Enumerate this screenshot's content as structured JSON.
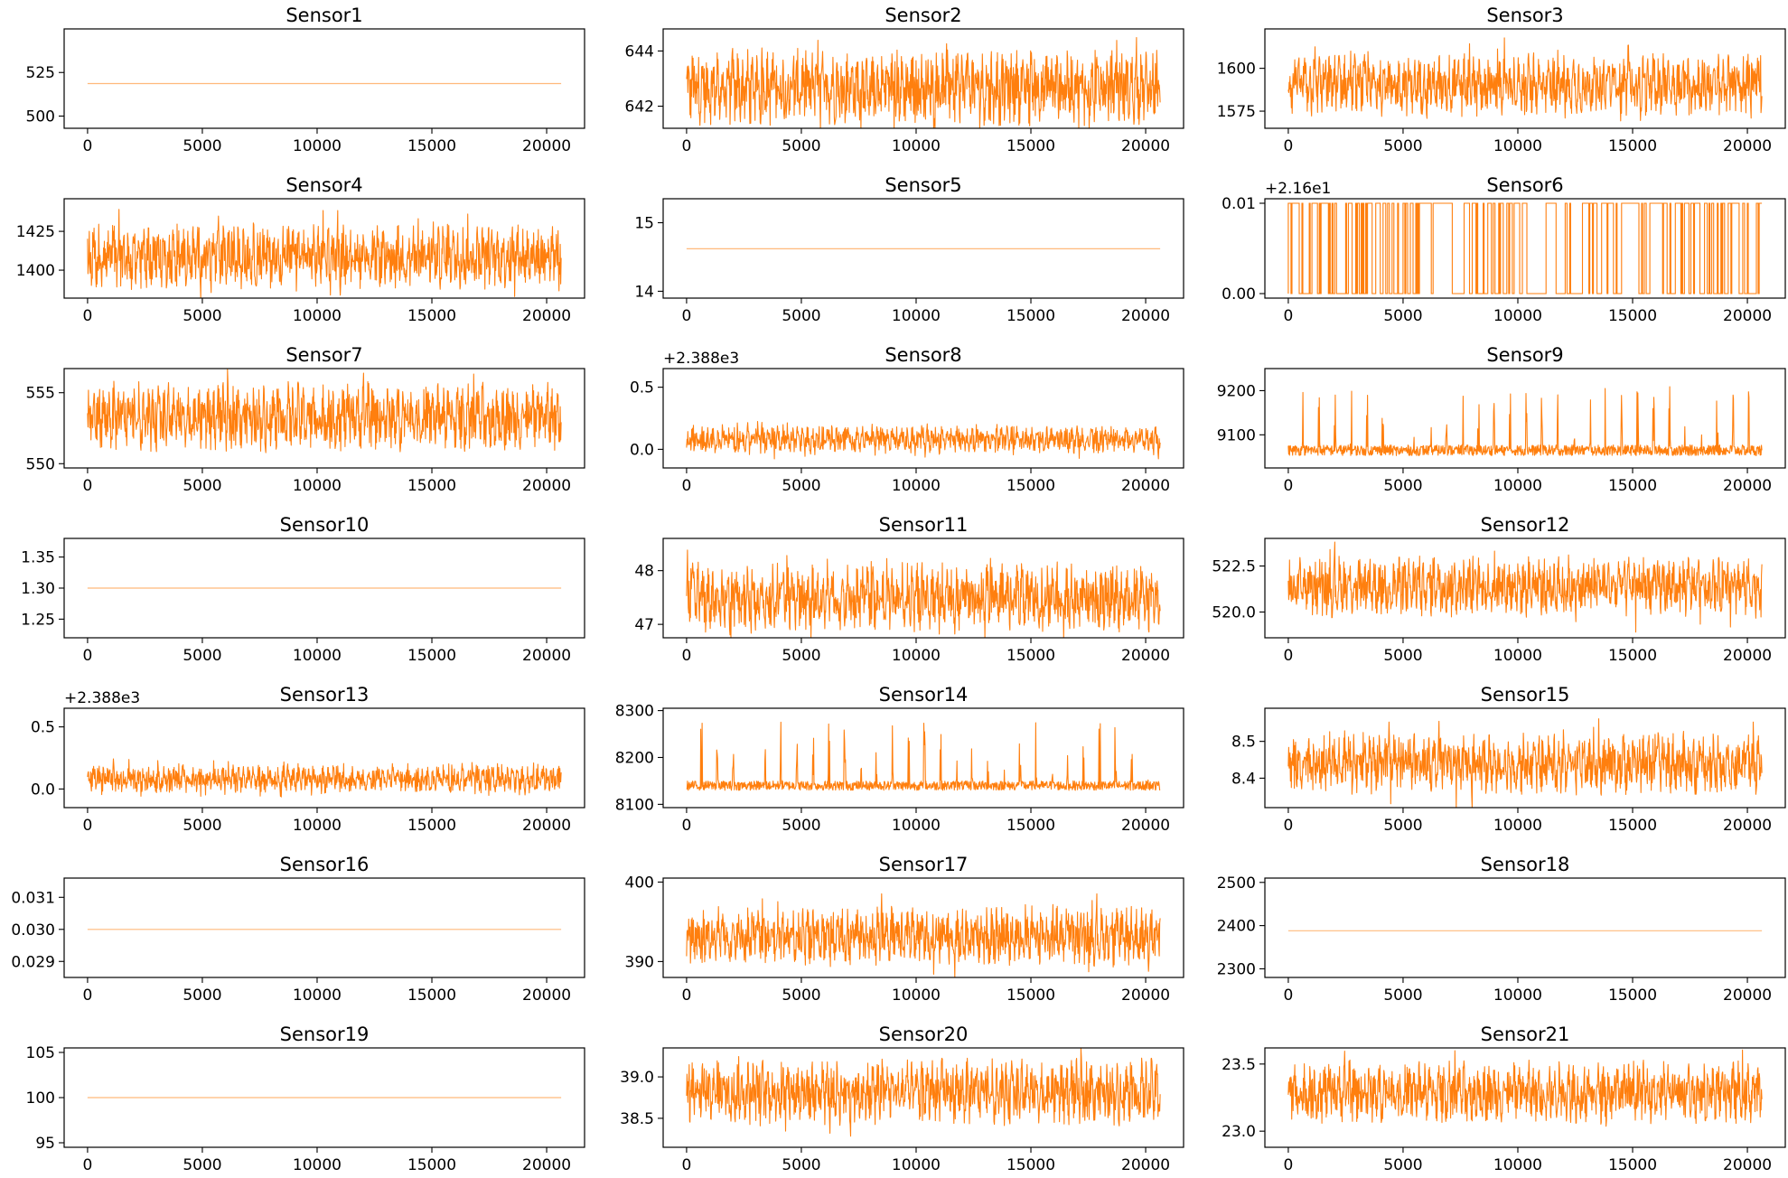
{
  "figure": {
    "x_ticks": [
      "0",
      "5000",
      "10000",
      "15000",
      "20000"
    ],
    "series_color": "#ff7f0e"
  },
  "chart_data": [
    {
      "type": "line",
      "title": "Sensor1",
      "x_range": [
        0,
        20631
      ],
      "ylim": [
        493,
        550
      ],
      "y_ticks": [
        {
          "value": 500,
          "label": "500"
        },
        {
          "value": 525,
          "label": "525"
        }
      ],
      "offset_text": "",
      "signal": {
        "kind": "flat",
        "level": 518.67
      }
    },
    {
      "type": "line",
      "title": "Sensor2",
      "x_range": [
        0,
        20631
      ],
      "ylim": [
        641.2,
        644.8
      ],
      "y_ticks": [
        {
          "value": 642,
          "label": "642"
        },
        {
          "value": 644,
          "label": "644"
        }
      ],
      "offset_text": "",
      "signal": {
        "kind": "noise",
        "mean": 642.68,
        "amplitude": 1.3,
        "spikes": 0.15
      }
    },
    {
      "type": "line",
      "title": "Sensor3",
      "x_range": [
        0,
        20631
      ],
      "ylim": [
        1565,
        1623
      ],
      "y_ticks": [
        {
          "value": 1575,
          "label": "1575"
        },
        {
          "value": 1600,
          "label": "1600"
        }
      ],
      "offset_text": "",
      "signal": {
        "kind": "noise",
        "mean": 1590.5,
        "amplitude": 17,
        "spikes": 0.15
      }
    },
    {
      "type": "line",
      "title": "Sensor4",
      "x_range": [
        0,
        20631
      ],
      "ylim": [
        1382,
        1446
      ],
      "y_ticks": [
        {
          "value": 1400,
          "label": "1400"
        },
        {
          "value": 1425,
          "label": "1425"
        }
      ],
      "offset_text": "",
      "signal": {
        "kind": "noise",
        "mean": 1408.9,
        "amplitude": 20,
        "spikes": 0.1
      }
    },
    {
      "type": "line",
      "title": "Sensor5",
      "x_range": [
        0,
        20631
      ],
      "ylim": [
        13.9,
        15.35
      ],
      "y_ticks": [
        {
          "value": 14,
          "label": "14"
        },
        {
          "value": 15,
          "label": "15"
        }
      ],
      "offset_text": "",
      "signal": {
        "kind": "flat",
        "level": 14.62
      }
    },
    {
      "type": "line",
      "title": "Sensor6",
      "x_range": [
        0,
        20631
      ],
      "ylim": [
        -0.0005,
        0.0105
      ],
      "y_ticks": [
        {
          "value": 0,
          "label": "0.00"
        },
        {
          "value": 0.01,
          "label": "0.01"
        }
      ],
      "offset_text": "+2.16e1",
      "signal": {
        "kind": "binary",
        "low": 0,
        "high": 0.01
      }
    },
    {
      "type": "line",
      "title": "Sensor7",
      "x_range": [
        0,
        20631
      ],
      "ylim": [
        549.7,
        556.7
      ],
      "y_ticks": [
        {
          "value": 550,
          "label": "550"
        },
        {
          "value": 555,
          "label": "555"
        }
      ],
      "offset_text": "",
      "signal": {
        "kind": "noise",
        "mean": 553.3,
        "amplitude": 2.3,
        "spikes": 0.1
      }
    },
    {
      "type": "line",
      "title": "Sensor8",
      "x_range": [
        0,
        20631
      ],
      "ylim": [
        -0.15,
        0.65
      ],
      "y_ticks": [
        {
          "value": 0,
          "label": "0.0"
        },
        {
          "value": 0.5,
          "label": "0.5"
        }
      ],
      "offset_text": "+2.388e3",
      "signal": {
        "kind": "noise",
        "mean": 0.08,
        "amplitude": 0.1,
        "spikes": 0.45
      }
    },
    {
      "type": "line",
      "title": "Sensor9",
      "x_range": [
        0,
        20631
      ],
      "ylim": [
        9025,
        9250
      ],
      "y_ticks": [
        {
          "value": 9100,
          "label": "9100"
        },
        {
          "value": 9200,
          "label": "9200"
        }
      ],
      "offset_text": "",
      "signal": {
        "kind": "baseline-spikes",
        "mean": 9065,
        "amplitude": 12,
        "spike_height": 150
      }
    },
    {
      "type": "line",
      "title": "Sensor10",
      "x_range": [
        0,
        20631
      ],
      "ylim": [
        1.22,
        1.38
      ],
      "y_ticks": [
        {
          "value": 1.25,
          "label": "1.25"
        },
        {
          "value": 1.3,
          "label": "1.30"
        },
        {
          "value": 1.35,
          "label": "1.35"
        }
      ],
      "offset_text": "",
      "signal": {
        "kind": "flat",
        "level": 1.3
      }
    },
    {
      "type": "line",
      "title": "Sensor11",
      "x_range": [
        0,
        20631
      ],
      "ylim": [
        46.75,
        48.6
      ],
      "y_ticks": [
        {
          "value": 47,
          "label": "47"
        },
        {
          "value": 48,
          "label": "48"
        }
      ],
      "offset_text": "",
      "signal": {
        "kind": "noise",
        "mean": 47.5,
        "amplitude": 0.6,
        "spikes": 0.15
      }
    },
    {
      "type": "line",
      "title": "Sensor12",
      "x_range": [
        0,
        20631
      ],
      "ylim": [
        518.6,
        524.0
      ],
      "y_ticks": [
        {
          "value": 520,
          "label": "520.0"
        },
        {
          "value": 522.5,
          "label": "522.5"
        }
      ],
      "offset_text": "",
      "signal": {
        "kind": "noise",
        "mean": 521.4,
        "amplitude": 1.6,
        "spikes": 0.1
      }
    },
    {
      "type": "line",
      "title": "Sensor13",
      "x_range": [
        0,
        20631
      ],
      "ylim": [
        -0.15,
        0.65
      ],
      "y_ticks": [
        {
          "value": 0,
          "label": "0.0"
        },
        {
          "value": 0.5,
          "label": "0.5"
        }
      ],
      "offset_text": "+2.388e3",
      "signal": {
        "kind": "noise",
        "mean": 0.08,
        "amplitude": 0.1,
        "spikes": 0.45
      }
    },
    {
      "type": "line",
      "title": "Sensor14",
      "x_range": [
        0,
        20631
      ],
      "ylim": [
        8093,
        8305
      ],
      "y_ticks": [
        {
          "value": 8100,
          "label": "8100"
        },
        {
          "value": 8200,
          "label": "8200"
        },
        {
          "value": 8300,
          "label": "8300"
        }
      ],
      "offset_text": "",
      "signal": {
        "kind": "baseline-spikes",
        "mean": 8140,
        "amplitude": 10,
        "spike_height": 140
      }
    },
    {
      "type": "line",
      "title": "Sensor15",
      "x_range": [
        0,
        20631
      ],
      "ylim": [
        8.32,
        8.59
      ],
      "y_ticks": [
        {
          "value": 8.4,
          "label": "8.4"
        },
        {
          "value": 8.5,
          "label": "8.5"
        }
      ],
      "offset_text": "",
      "signal": {
        "kind": "noise",
        "mean": 8.44,
        "amplitude": 0.08,
        "spikes": 0.1
      }
    },
    {
      "type": "line",
      "title": "Sensor16",
      "x_range": [
        0,
        20631
      ],
      "ylim": [
        0.0285,
        0.0316
      ],
      "y_ticks": [
        {
          "value": 0.029,
          "label": "0.029"
        },
        {
          "value": 0.03,
          "label": "0.030"
        },
        {
          "value": 0.031,
          "label": "0.031"
        }
      ],
      "offset_text": "",
      "signal": {
        "kind": "flat",
        "level": 0.03
      }
    },
    {
      "type": "line",
      "title": "Sensor17",
      "x_range": [
        0,
        20631
      ],
      "ylim": [
        388,
        400.5
      ],
      "y_ticks": [
        {
          "value": 390,
          "label": "390"
        },
        {
          "value": 400,
          "label": "400"
        }
      ],
      "offset_text": "",
      "signal": {
        "kind": "noise",
        "mean": 393.2,
        "amplitude": 3.5,
        "spikes": 0.15
      }
    },
    {
      "type": "line",
      "title": "Sensor18",
      "x_range": [
        0,
        20631
      ],
      "ylim": [
        2280,
        2510
      ],
      "y_ticks": [
        {
          "value": 2300,
          "label": "2300"
        },
        {
          "value": 2400,
          "label": "2400"
        },
        {
          "value": 2500,
          "label": "2500"
        }
      ],
      "offset_text": "",
      "signal": {
        "kind": "flat",
        "level": 2388
      }
    },
    {
      "type": "line",
      "title": "Sensor19",
      "x_range": [
        0,
        20631
      ],
      "ylim": [
        94.5,
        105.5
      ],
      "y_ticks": [
        {
          "value": 95,
          "label": "95"
        },
        {
          "value": 100,
          "label": "100"
        },
        {
          "value": 105,
          "label": "105"
        }
      ],
      "offset_text": "",
      "signal": {
        "kind": "flat",
        "level": 100
      }
    },
    {
      "type": "line",
      "title": "Sensor20",
      "x_range": [
        0,
        20631
      ],
      "ylim": [
        38.15,
        39.35
      ],
      "y_ticks": [
        {
          "value": 38.5,
          "label": "38.5"
        },
        {
          "value": 39,
          "label": "39.0"
        }
      ],
      "offset_text": "",
      "signal": {
        "kind": "noise",
        "mean": 38.82,
        "amplitude": 0.38,
        "spikes": 0.1
      }
    },
    {
      "type": "line",
      "title": "Sensor21",
      "x_range": [
        0,
        20631
      ],
      "ylim": [
        22.88,
        23.62
      ],
      "y_ticks": [
        {
          "value": 23,
          "label": "23.0"
        },
        {
          "value": 23.5,
          "label": "23.5"
        }
      ],
      "offset_text": "",
      "signal": {
        "kind": "noise",
        "mean": 23.29,
        "amplitude": 0.22,
        "spikes": 0.1
      }
    }
  ]
}
